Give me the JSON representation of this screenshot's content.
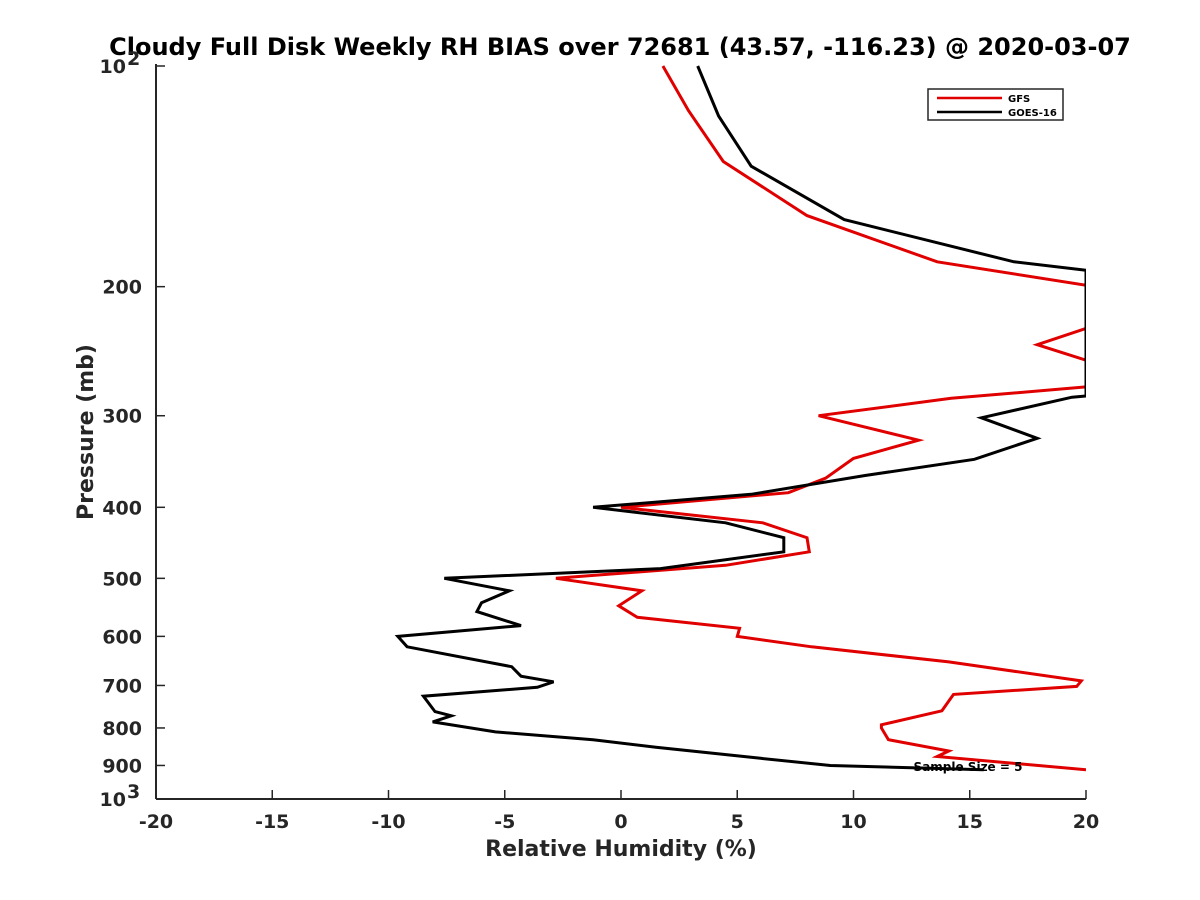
{
  "chart_data": {
    "type": "line",
    "title": "Cloudy Full Disk Weekly RH BIAS over 72681 (43.57, -116.23) @ 2020-03-07",
    "xlabel": "Relative Humidity (%)",
    "ylabel": "Pressure (mb)",
    "xlim": [
      -20,
      20
    ],
    "ylim": [
      100,
      1000
    ],
    "yscale": "log",
    "y_reversed": true,
    "grid": false,
    "legend_position": "top-right",
    "x_ticks": [
      "-20",
      "-15",
      "-10",
      "-5",
      "0",
      "5",
      "10",
      "15",
      "20"
    ],
    "y_ticks": [
      {
        "value": 100,
        "base": "10",
        "exp": "2"
      },
      {
        "value": 200,
        "label": "200"
      },
      {
        "value": 300,
        "label": "300"
      },
      {
        "value": 400,
        "label": "400"
      },
      {
        "value": 500,
        "label": "500"
      },
      {
        "value": 600,
        "label": "600"
      },
      {
        "value": 700,
        "label": "700"
      },
      {
        "value": 800,
        "label": "800"
      },
      {
        "value": 900,
        "label": "900"
      },
      {
        "value": 1000,
        "base": "10",
        "exp": "3"
      }
    ],
    "annotation": "Sample Size = 5",
    "series": [
      {
        "name": "GFS",
        "color": "#e00000",
        "points": [
          [
            1.8,
            100
          ],
          [
            2.9,
            115
          ],
          [
            4.4,
            135
          ],
          [
            8.0,
            160
          ],
          [
            13.6,
            185
          ],
          [
            20.4,
            200
          ],
          [
            20.0,
            228
          ],
          [
            17.9,
            240
          ],
          [
            20.0,
            252
          ],
          [
            20.0,
            274
          ],
          [
            14.2,
            284
          ],
          [
            8.5,
            300
          ],
          [
            12.8,
            324
          ],
          [
            10.0,
            343
          ],
          [
            8.8,
            365
          ],
          [
            7.2,
            382
          ],
          [
            0,
            400
          ],
          [
            6.1,
            420
          ],
          [
            8.0,
            440
          ],
          [
            8.1,
            460
          ],
          [
            4.5,
            480
          ],
          [
            -2.8,
            500
          ],
          [
            0.9,
            520
          ],
          [
            -0.1,
            545
          ],
          [
            0.7,
            565
          ],
          [
            5.1,
            585
          ],
          [
            5.0,
            600
          ],
          [
            8.2,
            620
          ],
          [
            14.1,
            650
          ],
          [
            19.8,
            690
          ],
          [
            19.6,
            702
          ],
          [
            14.3,
            720
          ],
          [
            13.8,
            758
          ],
          [
            11.2,
            792
          ],
          [
            11.2,
            800
          ],
          [
            11.5,
            830
          ],
          [
            14.1,
            860
          ],
          [
            13.6,
            875
          ],
          [
            20.0,
            912
          ]
        ]
      },
      {
        "name": "GOES-16",
        "color": "#000000",
        "points": [
          [
            3.3,
            100
          ],
          [
            4.2,
            117
          ],
          [
            5.6,
            137
          ],
          [
            9.6,
            162
          ],
          [
            16.9,
            185
          ],
          [
            20.0,
            190
          ],
          [
            20.0,
            282
          ],
          [
            19.4,
            283
          ],
          [
            15.5,
            302
          ],
          [
            17.9,
            322
          ],
          [
            15.2,
            344
          ],
          [
            10.5,
            362
          ],
          [
            5.6,
            384
          ],
          [
            -1.2,
            400
          ],
          [
            4.5,
            420
          ],
          [
            7.0,
            440
          ],
          [
            7.0,
            460
          ],
          [
            1.7,
            485
          ],
          [
            -7.6,
            500
          ],
          [
            -4.8,
            520
          ],
          [
            -6.0,
            540
          ],
          [
            -6.2,
            555
          ],
          [
            -4.3,
            580
          ],
          [
            -9.6,
            600
          ],
          [
            -9.2,
            620
          ],
          [
            -4.7,
            660
          ],
          [
            -4.3,
            680
          ],
          [
            -2.9,
            692
          ],
          [
            -3.6,
            704
          ],
          [
            -8.5,
            724
          ],
          [
            -8.0,
            760
          ],
          [
            -7.3,
            770
          ],
          [
            -8.1,
            785
          ],
          [
            -5.4,
            810
          ],
          [
            -1.2,
            830
          ],
          [
            1.5,
            850
          ],
          [
            6.0,
            880
          ],
          [
            9.0,
            900
          ],
          [
            15.6,
            912
          ]
        ]
      }
    ]
  }
}
